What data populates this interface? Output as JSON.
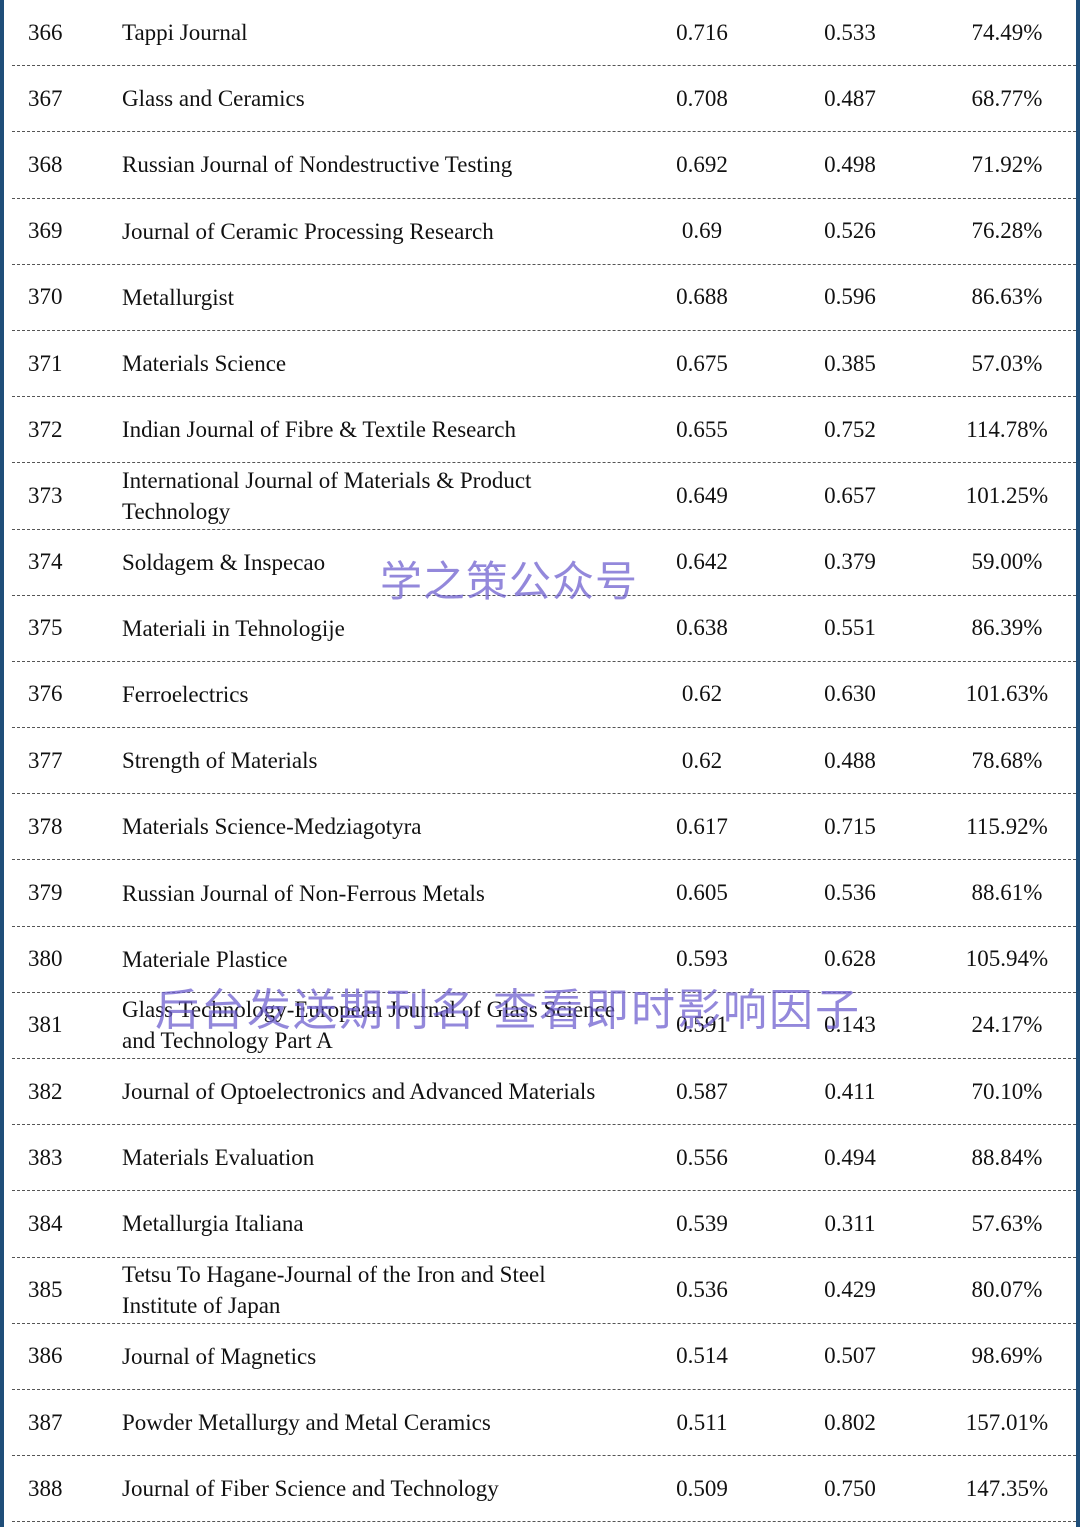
{
  "table": {
    "rows": [
      {
        "rank": "366",
        "name": "Tappi Journal",
        "if1": "0.716",
        "if2": "0.533",
        "pct": "74.49%"
      },
      {
        "rank": "367",
        "name": "Glass and Ceramics",
        "if1": "0.708",
        "if2": "0.487",
        "pct": "68.77%"
      },
      {
        "rank": "368",
        "name": "Russian Journal of Nondestructive Testing",
        "if1": "0.692",
        "if2": "0.498",
        "pct": "71.92%"
      },
      {
        "rank": "369",
        "name": "Journal of Ceramic Processing Research",
        "if1": "0.69",
        "if2": "0.526",
        "pct": "76.28%"
      },
      {
        "rank": "370",
        "name": "Metallurgist",
        "if1": "0.688",
        "if2": "0.596",
        "pct": "86.63%"
      },
      {
        "rank": "371",
        "name": "Materials Science",
        "if1": "0.675",
        "if2": "0.385",
        "pct": "57.03%"
      },
      {
        "rank": "372",
        "name": "Indian Journal of Fibre & Textile Research",
        "if1": "0.655",
        "if2": "0.752",
        "pct": "114.78%"
      },
      {
        "rank": "373",
        "name": "International Journal of Materials & Product Technology",
        "if1": "0.649",
        "if2": "0.657",
        "pct": "101.25%"
      },
      {
        "rank": "374",
        "name": "Soldagem & Inspecao",
        "if1": "0.642",
        "if2": "0.379",
        "pct": "59.00%"
      },
      {
        "rank": "375",
        "name": "Materiali in Tehnologije",
        "if1": "0.638",
        "if2": "0.551",
        "pct": "86.39%"
      },
      {
        "rank": "376",
        "name": "Ferroelectrics",
        "if1": "0.62",
        "if2": "0.630",
        "pct": "101.63%"
      },
      {
        "rank": "377",
        "name": "Strength of Materials",
        "if1": "0.62",
        "if2": "0.488",
        "pct": "78.68%"
      },
      {
        "rank": "378",
        "name": "Materials Science-Medziagotyra",
        "if1": "0.617",
        "if2": "0.715",
        "pct": "115.92%"
      },
      {
        "rank": "379",
        "name": "Russian Journal of Non-Ferrous Metals",
        "if1": "0.605",
        "if2": "0.536",
        "pct": "88.61%"
      },
      {
        "rank": "380",
        "name": "Materiale Plastice",
        "if1": "0.593",
        "if2": "0.628",
        "pct": "105.94%"
      },
      {
        "rank": "381",
        "name": "Glass Technology-European Journal of Glass Science and Technology Part A",
        "if1": "0.591",
        "if2": "0.143",
        "pct": "24.17%"
      },
      {
        "rank": "382",
        "name": "Journal of Optoelectronics and Advanced Materials",
        "if1": "0.587",
        "if2": "0.411",
        "pct": "70.10%"
      },
      {
        "rank": "383",
        "name": "Materials Evaluation",
        "if1": "0.556",
        "if2": "0.494",
        "pct": "88.84%"
      },
      {
        "rank": "384",
        "name": "Metallurgia Italiana",
        "if1": "0.539",
        "if2": "0.311",
        "pct": "57.63%"
      },
      {
        "rank": "385",
        "name": "Tetsu To Hagane-Journal of the Iron and Steel Institute of Japan",
        "if1": "0.536",
        "if2": "0.429",
        "pct": "80.07%"
      },
      {
        "rank": "386",
        "name": "Journal of Magnetics",
        "if1": "0.514",
        "if2": "0.507",
        "pct": "98.69%"
      },
      {
        "rank": "387",
        "name": "Powder Metallurgy and Metal Ceramics",
        "if1": "0.511",
        "if2": "0.802",
        "pct": "157.01%"
      },
      {
        "rank": "388",
        "name": "Journal of Fiber Science and Technology",
        "if1": "0.509",
        "if2": "0.750",
        "pct": "147.35%"
      }
    ]
  },
  "watermarks": {
    "top": "学之策公众号",
    "bottom": "后台发送期刊名 查看即时影响因子"
  },
  "colors": {
    "frame_border": "#1f4e79",
    "watermark": "#6a5acd"
  }
}
